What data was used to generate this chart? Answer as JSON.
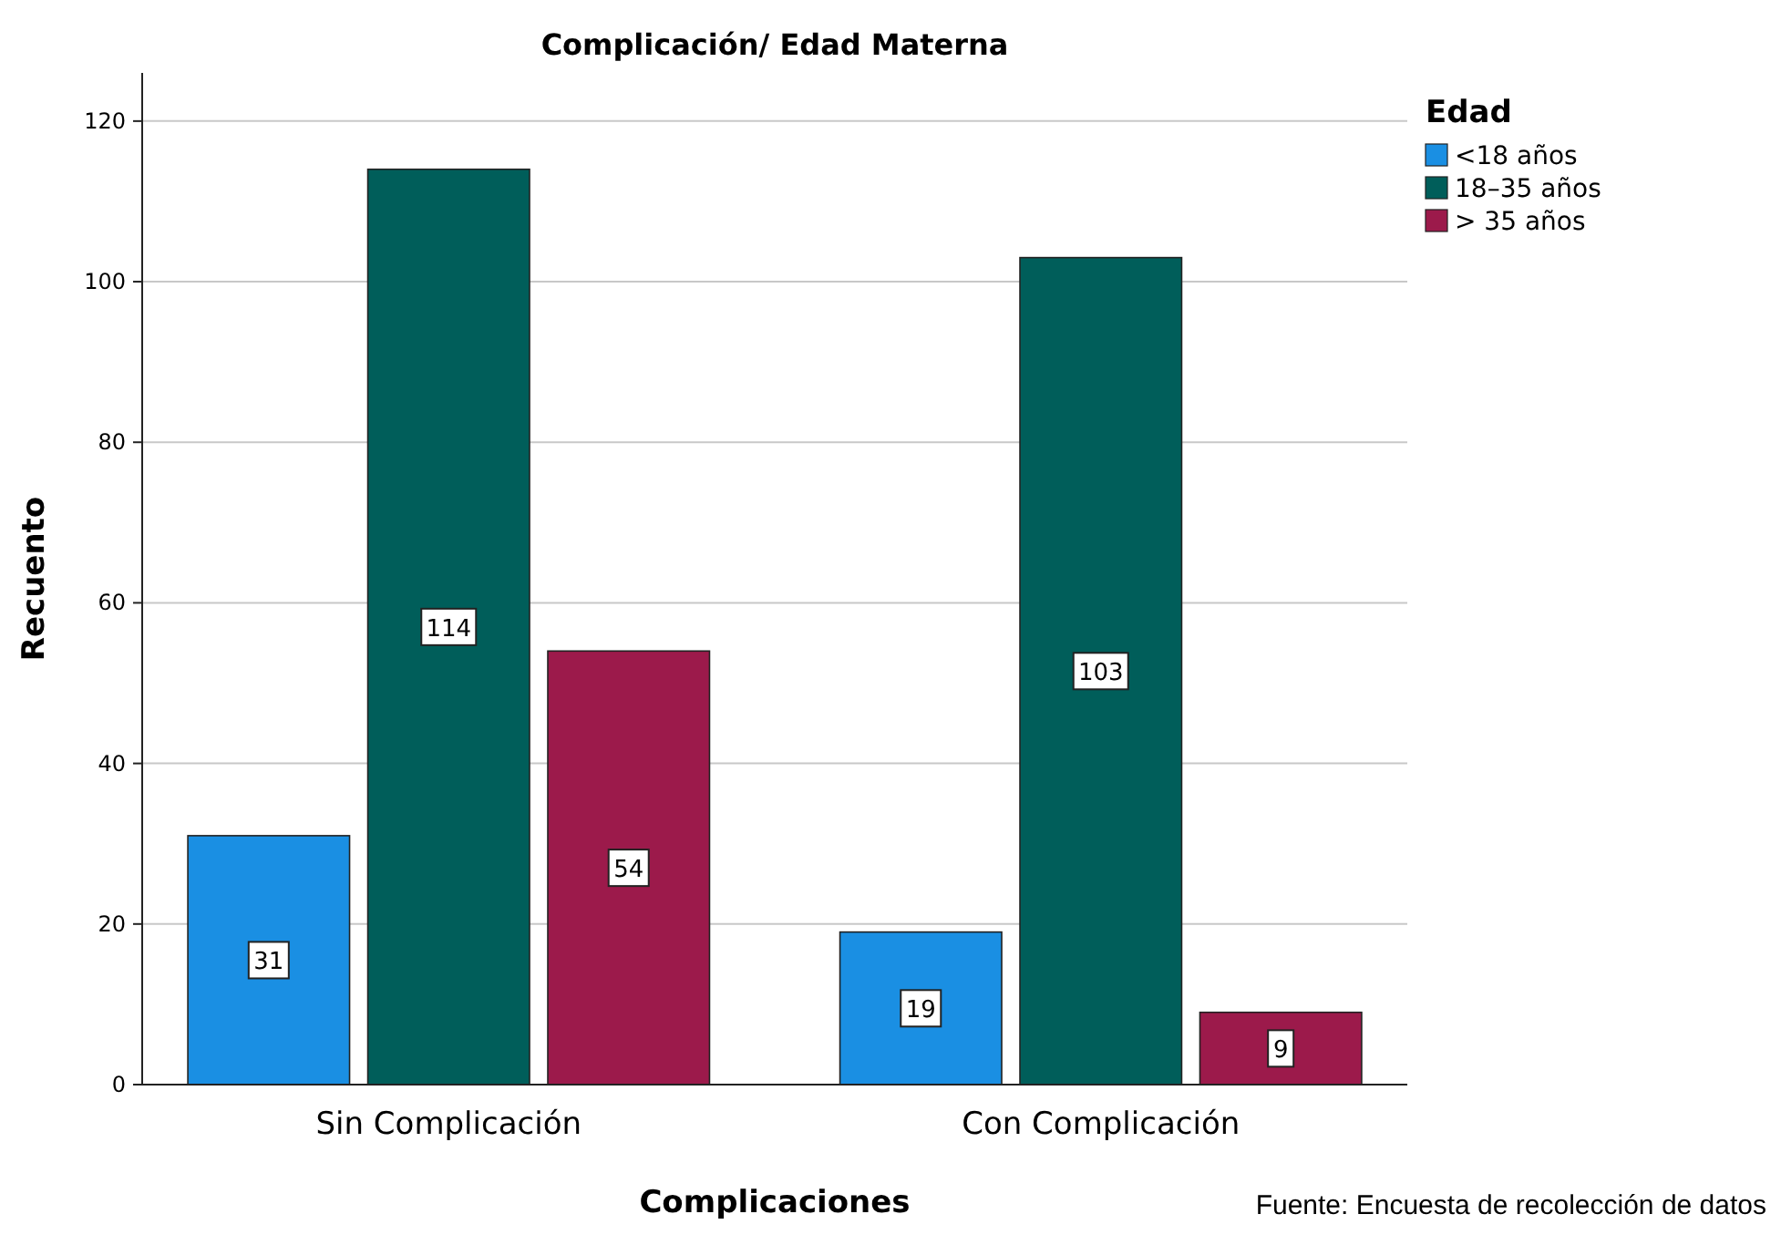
{
  "chart_data": {
    "type": "bar",
    "title": "Complicación/ Edad Materna",
    "xlabel": "Complicaciones",
    "ylabel": "Recuento",
    "legend_title": "Edad",
    "categories": [
      "Sin Complicación",
      "Con Complicación"
    ],
    "series": [
      {
        "name": "<18 años",
        "color": "#1a8fe3",
        "values": [
          31,
          19
        ]
      },
      {
        "name": "18–35 años",
        "color": "#005e5a",
        "values": [
          114,
          103
        ]
      },
      {
        "name": "> 35 años",
        "color": "#9c1a4b",
        "values": [
          54,
          9
        ]
      }
    ],
    "ylim": [
      0,
      126
    ],
    "yticks": [
      0,
      20,
      40,
      60,
      80,
      100,
      120
    ],
    "grid": "y",
    "legend": "top right",
    "data_labels": true,
    "annotations": [
      "Fuente: Encuesta de recolección de datos"
    ]
  }
}
